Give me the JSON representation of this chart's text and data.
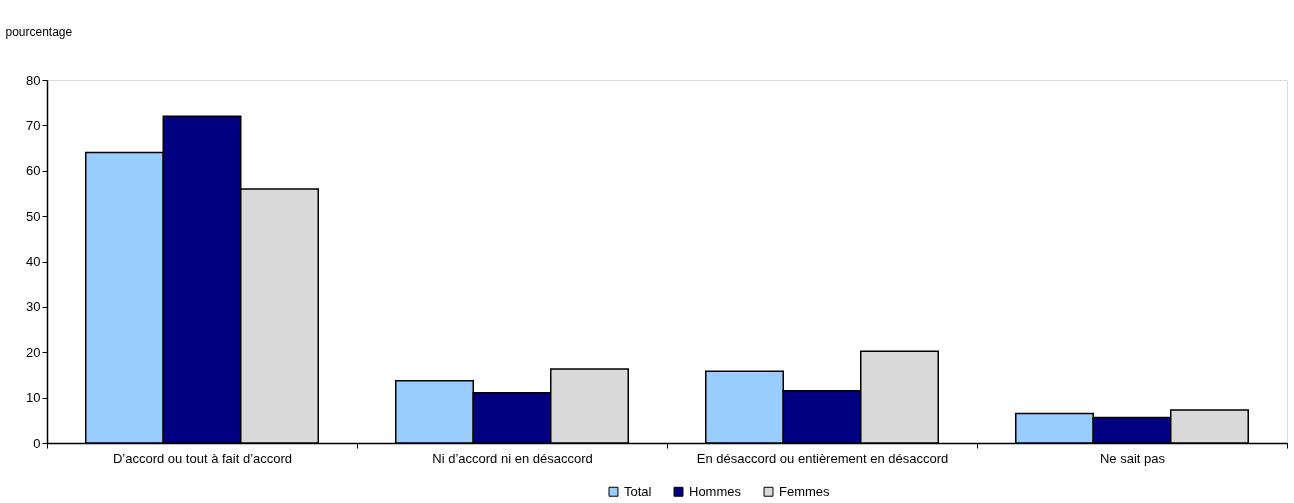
{
  "chart_data": {
    "type": "bar",
    "ylabel": "pourcentage",
    "categories": [
      "D’accord ou tout à fait d’accord",
      "Ni d’accord ni en désaccord",
      "En désaccord ou entièrement en désaccord",
      "Ne sait pas"
    ],
    "series": [
      {
        "name": "Total",
        "color": "#99ccff",
        "values": [
          64,
          13.7,
          15.8,
          6.5
        ]
      },
      {
        "name": "Hommes",
        "color": "#000080",
        "values": [
          72,
          11.1,
          11.5,
          5.6
        ]
      },
      {
        "name": "Femmes",
        "color": "#d9d9d9",
        "values": [
          56,
          16.3,
          20.2,
          7.3
        ]
      }
    ],
    "ylim": [
      0,
      80
    ],
    "yticks": [
      0,
      10,
      20,
      30,
      40,
      50,
      60,
      70,
      80
    ],
    "grid": false,
    "legend": "bottom"
  }
}
